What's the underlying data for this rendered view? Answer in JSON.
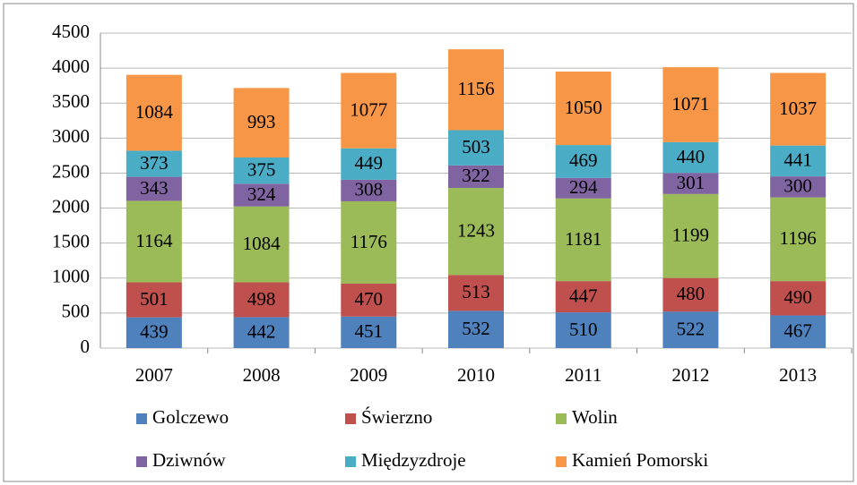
{
  "chart_data": {
    "type": "bar",
    "stacked": true,
    "categories": [
      "2007",
      "2008",
      "2009",
      "2010",
      "2011",
      "2012",
      "2013"
    ],
    "series": [
      {
        "name": "Golczewo",
        "color": "#4f81bd",
        "values": [
          439,
          442,
          451,
          532,
          510,
          522,
          467
        ]
      },
      {
        "name": "Świerzno",
        "color": "#c0504d",
        "values": [
          501,
          498,
          470,
          513,
          447,
          480,
          490
        ]
      },
      {
        "name": "Wolin",
        "color": "#9bbb59",
        "values": [
          1164,
          1084,
          1176,
          1243,
          1181,
          1199,
          1196
        ]
      },
      {
        "name": "Dziwnów",
        "color": "#8064a2",
        "values": [
          343,
          324,
          308,
          322,
          294,
          301,
          300
        ]
      },
      {
        "name": "Międzyzdroje",
        "color": "#4bacc6",
        "values": [
          373,
          375,
          449,
          503,
          469,
          440,
          441
        ]
      },
      {
        "name": "Kamień Pomorski",
        "color": "#f79646",
        "values": [
          1084,
          993,
          1077,
          1156,
          1050,
          1071,
          1037
        ]
      }
    ],
    "ylim": [
      0,
      4500
    ],
    "yticks": [
      0,
      500,
      1000,
      1500,
      2000,
      2500,
      3000,
      3500,
      4000,
      4500
    ],
    "grid": true,
    "legend": "bottom"
  }
}
